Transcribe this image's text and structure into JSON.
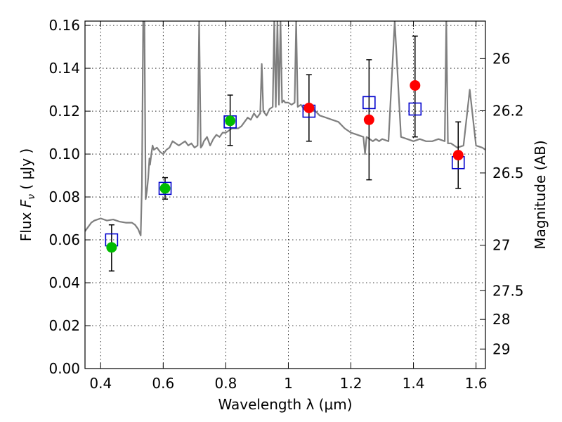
{
  "chart_data": {
    "type": "scatter",
    "xlabel": "Wavelength  λ (μm)",
    "ylabel_parts": {
      "text": "Flux ",
      "symbol": "F",
      "subscript": "ν",
      "unit": "  ( μJy )"
    },
    "ylabel_right": "Magnitude (AB)",
    "xlim": [
      0.35,
      1.63
    ],
    "ylim": [
      0.0,
      0.162
    ],
    "grid": true,
    "x_ticks": [
      0.4,
      0.6,
      0.8,
      1.0,
      1.2,
      1.4,
      1.6
    ],
    "x_tick_labels": [
      "0.4",
      "0.6",
      "0.8",
      "1",
      "1.2",
      "1.4",
      "1.6"
    ],
    "y_ticks": [
      0.0,
      0.02,
      0.04,
      0.06,
      0.08,
      0.1,
      0.12,
      0.14,
      0.16
    ],
    "y_tick_labels": [
      "0.00",
      "0.02",
      "0.04",
      "0.06",
      "0.08",
      "0.10",
      "0.12",
      "0.14",
      "0.16"
    ],
    "right_ticks": [
      {
        "label": "26",
        "flux": 0.1445
      },
      {
        "label": "26.2",
        "flux": 0.1202
      },
      {
        "label": "26.5",
        "flux": 0.0912
      },
      {
        "label": "27",
        "flux": 0.0575
      },
      {
        "label": "27.5",
        "flux": 0.0363
      },
      {
        "label": "28",
        "flux": 0.0229
      },
      {
        "label": "29",
        "flux": 0.0091
      }
    ],
    "series": [
      {
        "marker": "open-square",
        "color": "#0000cc",
        "points": [
          {
            "x": 0.435,
            "y": 0.06
          },
          {
            "x": 0.606,
            "y": 0.084
          },
          {
            "x": 0.814,
            "y": 0.115
          },
          {
            "x": 1.066,
            "y": 0.12
          },
          {
            "x": 1.258,
            "y": 0.124
          },
          {
            "x": 1.405,
            "y": 0.121
          },
          {
            "x": 1.543,
            "y": 0.096
          }
        ]
      },
      {
        "marker": "filled-circle",
        "color": "#00bb00",
        "points": [
          {
            "x": 0.435,
            "y": 0.0565,
            "err_low": 0.0455,
            "err_high": 0.067
          },
          {
            "x": 0.606,
            "y": 0.084,
            "err_low": 0.079,
            "err_high": 0.089
          },
          {
            "x": 0.814,
            "y": 0.1155,
            "err_low": 0.104,
            "err_high": 0.1275
          }
        ]
      },
      {
        "marker": "filled-circle",
        "color": "#ff0000",
        "points": [
          {
            "x": 1.066,
            "y": 0.1215,
            "err_low": 0.106,
            "err_high": 0.137
          },
          {
            "x": 1.258,
            "y": 0.116,
            "err_low": 0.088,
            "err_high": 0.144
          },
          {
            "x": 1.405,
            "y": 0.132,
            "err_low": 0.108,
            "err_high": 0.155
          },
          {
            "x": 1.543,
            "y": 0.0995,
            "err_low": 0.084,
            "err_high": 0.115
          }
        ]
      }
    ],
    "spectrum": {
      "color": "#7f7f7f",
      "x": [
        0.35,
        0.37,
        0.38,
        0.39,
        0.4,
        0.42,
        0.44,
        0.46,
        0.48,
        0.5,
        0.51,
        0.52,
        0.528,
        0.532,
        0.536,
        0.54,
        0.544,
        0.548,
        0.552,
        0.556,
        0.558,
        0.562,
        0.566,
        0.57,
        0.58,
        0.59,
        0.6,
        0.61,
        0.62,
        0.63,
        0.64,
        0.65,
        0.66,
        0.67,
        0.68,
        0.69,
        0.7,
        0.71,
        0.715,
        0.72,
        0.725,
        0.73,
        0.74,
        0.75,
        0.76,
        0.77,
        0.78,
        0.79,
        0.8,
        0.82,
        0.84,
        0.85,
        0.86,
        0.87,
        0.88,
        0.89,
        0.9,
        0.91,
        0.915,
        0.92,
        0.93,
        0.94,
        0.95,
        0.955,
        0.96,
        0.965,
        0.97,
        0.975,
        0.98,
        0.985,
        0.99,
        1.0,
        1.01,
        1.02,
        1.025,
        1.03,
        1.04,
        1.05,
        1.06,
        1.08,
        1.1,
        1.12,
        1.14,
        1.16,
        1.18,
        1.2,
        1.22,
        1.24,
        1.245,
        1.25,
        1.26,
        1.27,
        1.28,
        1.29,
        1.3,
        1.32,
        1.34,
        1.36,
        1.38,
        1.4,
        1.42,
        1.44,
        1.46,
        1.48,
        1.5,
        1.505,
        1.51,
        1.52,
        1.54,
        1.56,
        1.58,
        1.6,
        1.62,
        1.63
      ],
      "y": [
        0.064,
        0.068,
        0.069,
        0.0695,
        0.07,
        0.069,
        0.0695,
        0.0685,
        0.068,
        0.068,
        0.067,
        0.065,
        0.062,
        0.085,
        0.162,
        0.162,
        0.079,
        0.083,
        0.089,
        0.098,
        0.095,
        0.1,
        0.104,
        0.102,
        0.103,
        0.101,
        0.1,
        0.102,
        0.103,
        0.106,
        0.105,
        0.104,
        0.105,
        0.106,
        0.104,
        0.105,
        0.103,
        0.104,
        0.162,
        0.103,
        0.104,
        0.106,
        0.108,
        0.104,
        0.107,
        0.109,
        0.108,
        0.11,
        0.11,
        0.112,
        0.112,
        0.113,
        0.115,
        0.117,
        0.116,
        0.119,
        0.117,
        0.119,
        0.142,
        0.12,
        0.118,
        0.121,
        0.122,
        0.162,
        0.122,
        0.162,
        0.123,
        0.162,
        0.124,
        0.125,
        0.124,
        0.124,
        0.123,
        0.124,
        0.162,
        0.122,
        0.123,
        0.121,
        0.12,
        0.121,
        0.118,
        0.117,
        0.116,
        0.115,
        0.112,
        0.11,
        0.109,
        0.108,
        0.1,
        0.108,
        0.107,
        0.106,
        0.107,
        0.106,
        0.107,
        0.106,
        0.162,
        0.108,
        0.107,
        0.106,
        0.107,
        0.106,
        0.106,
        0.107,
        0.106,
        0.162,
        0.105,
        0.105,
        0.103,
        0.104,
        0.13,
        0.104,
        0.103,
        0.102
      ]
    }
  }
}
